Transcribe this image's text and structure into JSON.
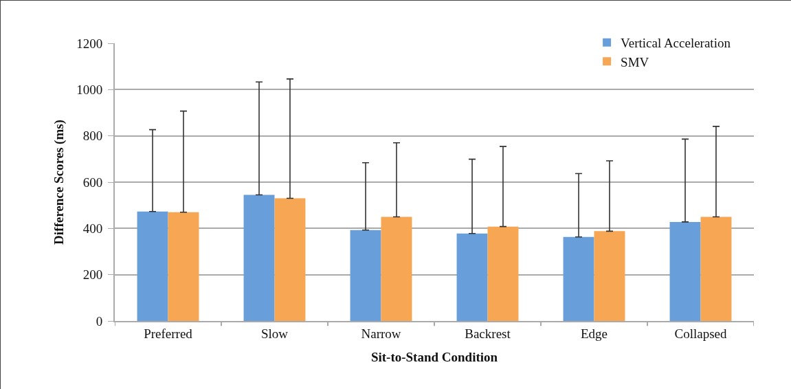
{
  "chart_data": {
    "type": "bar",
    "xlabel": "Sit-to-Stand Condition",
    "ylabel": "Difference Scores (ms)",
    "categories": [
      "Preferred",
      "Slow",
      "Narrow",
      "Backrest",
      "Edge",
      "Collapsed"
    ],
    "series": [
      {
        "name": "Vertical Acceleration",
        "color": "#689fdb",
        "values": [
          473,
          545,
          393,
          378,
          363,
          428
        ],
        "errors": [
          [
            473,
            827
          ],
          [
            545,
            1033
          ],
          [
            393,
            684
          ],
          [
            378,
            699
          ],
          [
            363,
            637
          ],
          [
            428,
            786
          ]
        ]
      },
      {
        "name": "SMV",
        "color": "#f7a654",
        "values": [
          470,
          530,
          450,
          408,
          388,
          450
        ],
        "errors": [
          [
            470,
            907
          ],
          [
            530,
            1046
          ],
          [
            450,
            770
          ],
          [
            408,
            754
          ],
          [
            388,
            692
          ],
          [
            450,
            841
          ]
        ]
      }
    ],
    "ylim": [
      0,
      1200
    ],
    "yticks": [
      0,
      200,
      400,
      600,
      800,
      1000,
      1200
    ],
    "grid": "y",
    "legend": "top right"
  }
}
